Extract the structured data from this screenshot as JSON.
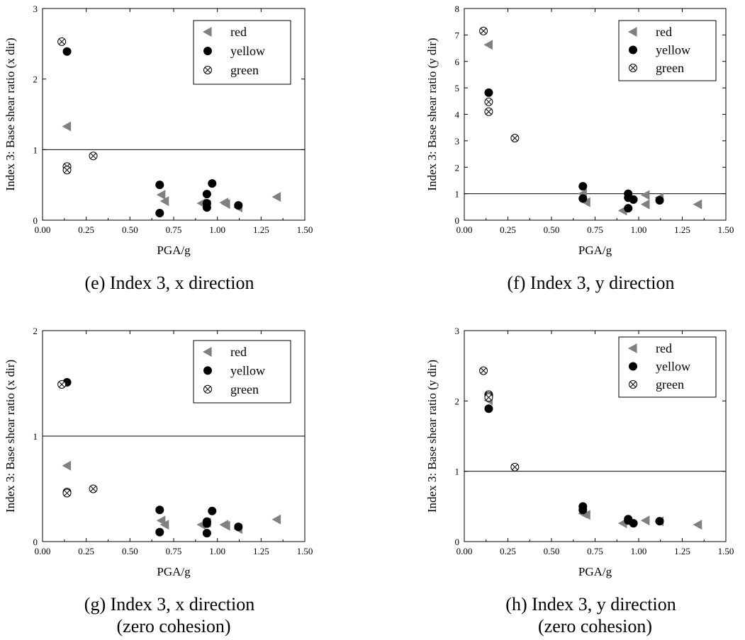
{
  "chart_data": [
    {
      "type": "scatter",
      "xlabel": "PGA/g",
      "ylabel": "Index 3: Base shear ratio (x dir)",
      "caption": [
        "(e)  Index 3, x direction"
      ],
      "xlim": [
        0,
        1.5
      ],
      "ylim": [
        0,
        3
      ],
      "xticks": [
        "0.00",
        "0.25",
        "0.50",
        "0.75",
        "1.00",
        "1.25",
        "1.50"
      ],
      "yticks": [
        "0",
        "1",
        "2",
        "3"
      ],
      "reference_line_y": 1,
      "legend_position": "top-right",
      "series": [
        {
          "name": "red",
          "marker": "triangle-left",
          "color": "#808080",
          "points": [
            [
              0.14,
              1.33
            ],
            [
              0.68,
              0.36
            ],
            [
              0.7,
              0.27
            ],
            [
              0.91,
              0.24
            ],
            [
              0.94,
              0.22
            ],
            [
              1.04,
              0.25
            ],
            [
              1.05,
              0.23
            ],
            [
              1.12,
              0.18
            ],
            [
              1.34,
              0.33
            ]
          ]
        },
        {
          "name": "yellow",
          "marker": "circle",
          "color": "#000000",
          "points": [
            [
              0.14,
              2.39
            ],
            [
              0.67,
              0.5
            ],
            [
              0.67,
              0.1
            ],
            [
              0.94,
              0.37
            ],
            [
              0.94,
              0.24
            ],
            [
              0.94,
              0.18
            ],
            [
              0.97,
              0.52
            ],
            [
              1.12,
              0.21
            ]
          ]
        },
        {
          "name": "green",
          "marker": "circle-x",
          "color": "#000000",
          "points": [
            [
              0.11,
              2.53
            ],
            [
              0.14,
              0.76
            ],
            [
              0.14,
              0.71
            ],
            [
              0.29,
              0.91
            ]
          ]
        }
      ]
    },
    {
      "type": "scatter",
      "xlabel": "PGA/g",
      "ylabel": "Index 3: Base shear ratio (y dir)",
      "caption": [
        "(f)  Index 3, y direction"
      ],
      "xlim": [
        0,
        1.5
      ],
      "ylim": [
        0,
        8
      ],
      "xticks": [
        "0.00",
        "0.25",
        "0.50",
        "0.75",
        "1.00",
        "1.25",
        "1.50"
      ],
      "yticks": [
        "0",
        "1",
        "2",
        "3",
        "4",
        "5",
        "6",
        "7",
        "8"
      ],
      "reference_line_y": 1,
      "legend_position": "top-right",
      "series": [
        {
          "name": "red",
          "marker": "triangle-left",
          "color": "#808080",
          "points": [
            [
              0.14,
              6.63
            ],
            [
              0.68,
              1.0
            ],
            [
              0.7,
              0.68
            ],
            [
              0.91,
              0.36
            ],
            [
              1.04,
              0.95
            ],
            [
              1.04,
              0.6
            ],
            [
              1.12,
              0.85
            ],
            [
              1.34,
              0.6
            ]
          ]
        },
        {
          "name": "yellow",
          "marker": "circle",
          "color": "#000000",
          "points": [
            [
              0.14,
              4.82
            ],
            [
              0.68,
              1.28
            ],
            [
              0.68,
              0.82
            ],
            [
              0.94,
              1.0
            ],
            [
              0.94,
              0.85
            ],
            [
              0.94,
              0.45
            ],
            [
              0.97,
              0.78
            ],
            [
              1.12,
              0.75
            ]
          ]
        },
        {
          "name": "green",
          "marker": "circle-x",
          "color": "#000000",
          "points": [
            [
              0.11,
              7.15
            ],
            [
              0.14,
              4.47
            ],
            [
              0.14,
              4.1
            ],
            [
              0.29,
              3.1
            ]
          ]
        }
      ]
    },
    {
      "type": "scatter",
      "xlabel": "PGA/g",
      "ylabel": "Index 3: Base shear ratio (x dir)",
      "caption": [
        "(g)  Index 3, x direction",
        "(zero cohesion)"
      ],
      "xlim": [
        0,
        1.5
      ],
      "ylim": [
        0,
        2
      ],
      "xticks": [
        "0.00",
        "0.25",
        "0.50",
        "0.75",
        "1.00",
        "1.25",
        "1.50"
      ],
      "yticks": [
        "0",
        "1",
        "2"
      ],
      "reference_line_y": 1,
      "legend_position": "top-right",
      "series": [
        {
          "name": "red",
          "marker": "triangle-left",
          "color": "#808080",
          "points": [
            [
              0.14,
              0.72
            ],
            [
              0.68,
              0.2
            ],
            [
              0.7,
              0.16
            ],
            [
              0.91,
              0.16
            ],
            [
              0.94,
              0.18
            ],
            [
              1.04,
              0.16
            ],
            [
              1.05,
              0.15
            ],
            [
              1.12,
              0.12
            ],
            [
              1.34,
              0.21
            ]
          ]
        },
        {
          "name": "yellow",
          "marker": "circle",
          "color": "#000000",
          "points": [
            [
              0.14,
              1.51
            ],
            [
              0.67,
              0.3
            ],
            [
              0.67,
              0.09
            ],
            [
              0.94,
              0.19
            ],
            [
              0.94,
              0.17
            ],
            [
              0.94,
              0.08
            ],
            [
              0.97,
              0.29
            ],
            [
              1.12,
              0.14
            ]
          ]
        },
        {
          "name": "green",
          "marker": "circle-x",
          "color": "#000000",
          "points": [
            [
              0.11,
              1.49
            ],
            [
              0.14,
              0.47
            ],
            [
              0.14,
              0.46
            ],
            [
              0.29,
              0.5
            ]
          ]
        }
      ]
    },
    {
      "type": "scatter",
      "xlabel": "PGA/g",
      "ylabel": "Index 3: Base shear ratio (y dir)",
      "caption": [
        "(h)  Index 3, y direction",
        "(zero cohesion)"
      ],
      "xlim": [
        0,
        1.5
      ],
      "ylim": [
        0,
        3
      ],
      "xticks": [
        "0.00",
        "0.25",
        "0.50",
        "0.75",
        "1.00",
        "1.25",
        "1.50"
      ],
      "yticks": [
        "0",
        "1",
        "2",
        "3"
      ],
      "reference_line_y": 1,
      "legend_position": "top-right",
      "series": [
        {
          "name": "red",
          "marker": "triangle-left",
          "color": "#808080",
          "points": [
            [
              0.14,
              2.01
            ],
            [
              0.68,
              0.4
            ],
            [
              0.7,
              0.38
            ],
            [
              0.91,
              0.26
            ],
            [
              1.04,
              0.3
            ],
            [
              1.12,
              0.29
            ],
            [
              1.34,
              0.24
            ]
          ]
        },
        {
          "name": "yellow",
          "marker": "circle",
          "color": "#000000",
          "points": [
            [
              0.14,
              1.89
            ],
            [
              0.68,
              0.5
            ],
            [
              0.68,
              0.45
            ],
            [
              0.94,
              0.32
            ],
            [
              0.94,
              0.3
            ],
            [
              0.97,
              0.26
            ],
            [
              1.12,
              0.29
            ]
          ]
        },
        {
          "name": "green",
          "marker": "circle-x",
          "color": "#000000",
          "points": [
            [
              0.11,
              2.43
            ],
            [
              0.14,
              2.09
            ],
            [
              0.14,
              2.07
            ],
            [
              0.14,
              2.05
            ],
            [
              0.29,
              1.06
            ]
          ]
        }
      ]
    }
  ]
}
